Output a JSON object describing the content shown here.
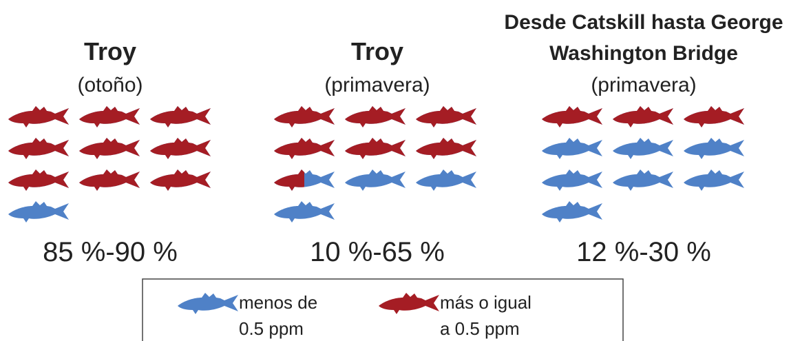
{
  "panels": [
    {
      "title": [
        "Troy"
      ],
      "subtitle": "(otoño)",
      "range": "85 %-90 %",
      "red_fish": 9,
      "blue_fish": 1
    },
    {
      "title": [
        "Troy"
      ],
      "subtitle": "(primavera)",
      "range": "10 %-65 %",
      "red_fish": 6.5,
      "blue_fish": 3.5
    },
    {
      "title": [
        "Desde Catskill hasta George",
        "Washington Bridge"
      ],
      "subtitle": "(primavera)",
      "range": "12 %-30 %",
      "red_fish": 3,
      "blue_fish": 7
    }
  ],
  "legend": [
    {
      "lines": [
        "menos de",
        "0.5 ppm"
      ],
      "color": "#4f81c7"
    },
    {
      "lines": [
        "más o igual",
        "a 0.5 ppm"
      ],
      "color": "#a51d24"
    }
  ]
}
